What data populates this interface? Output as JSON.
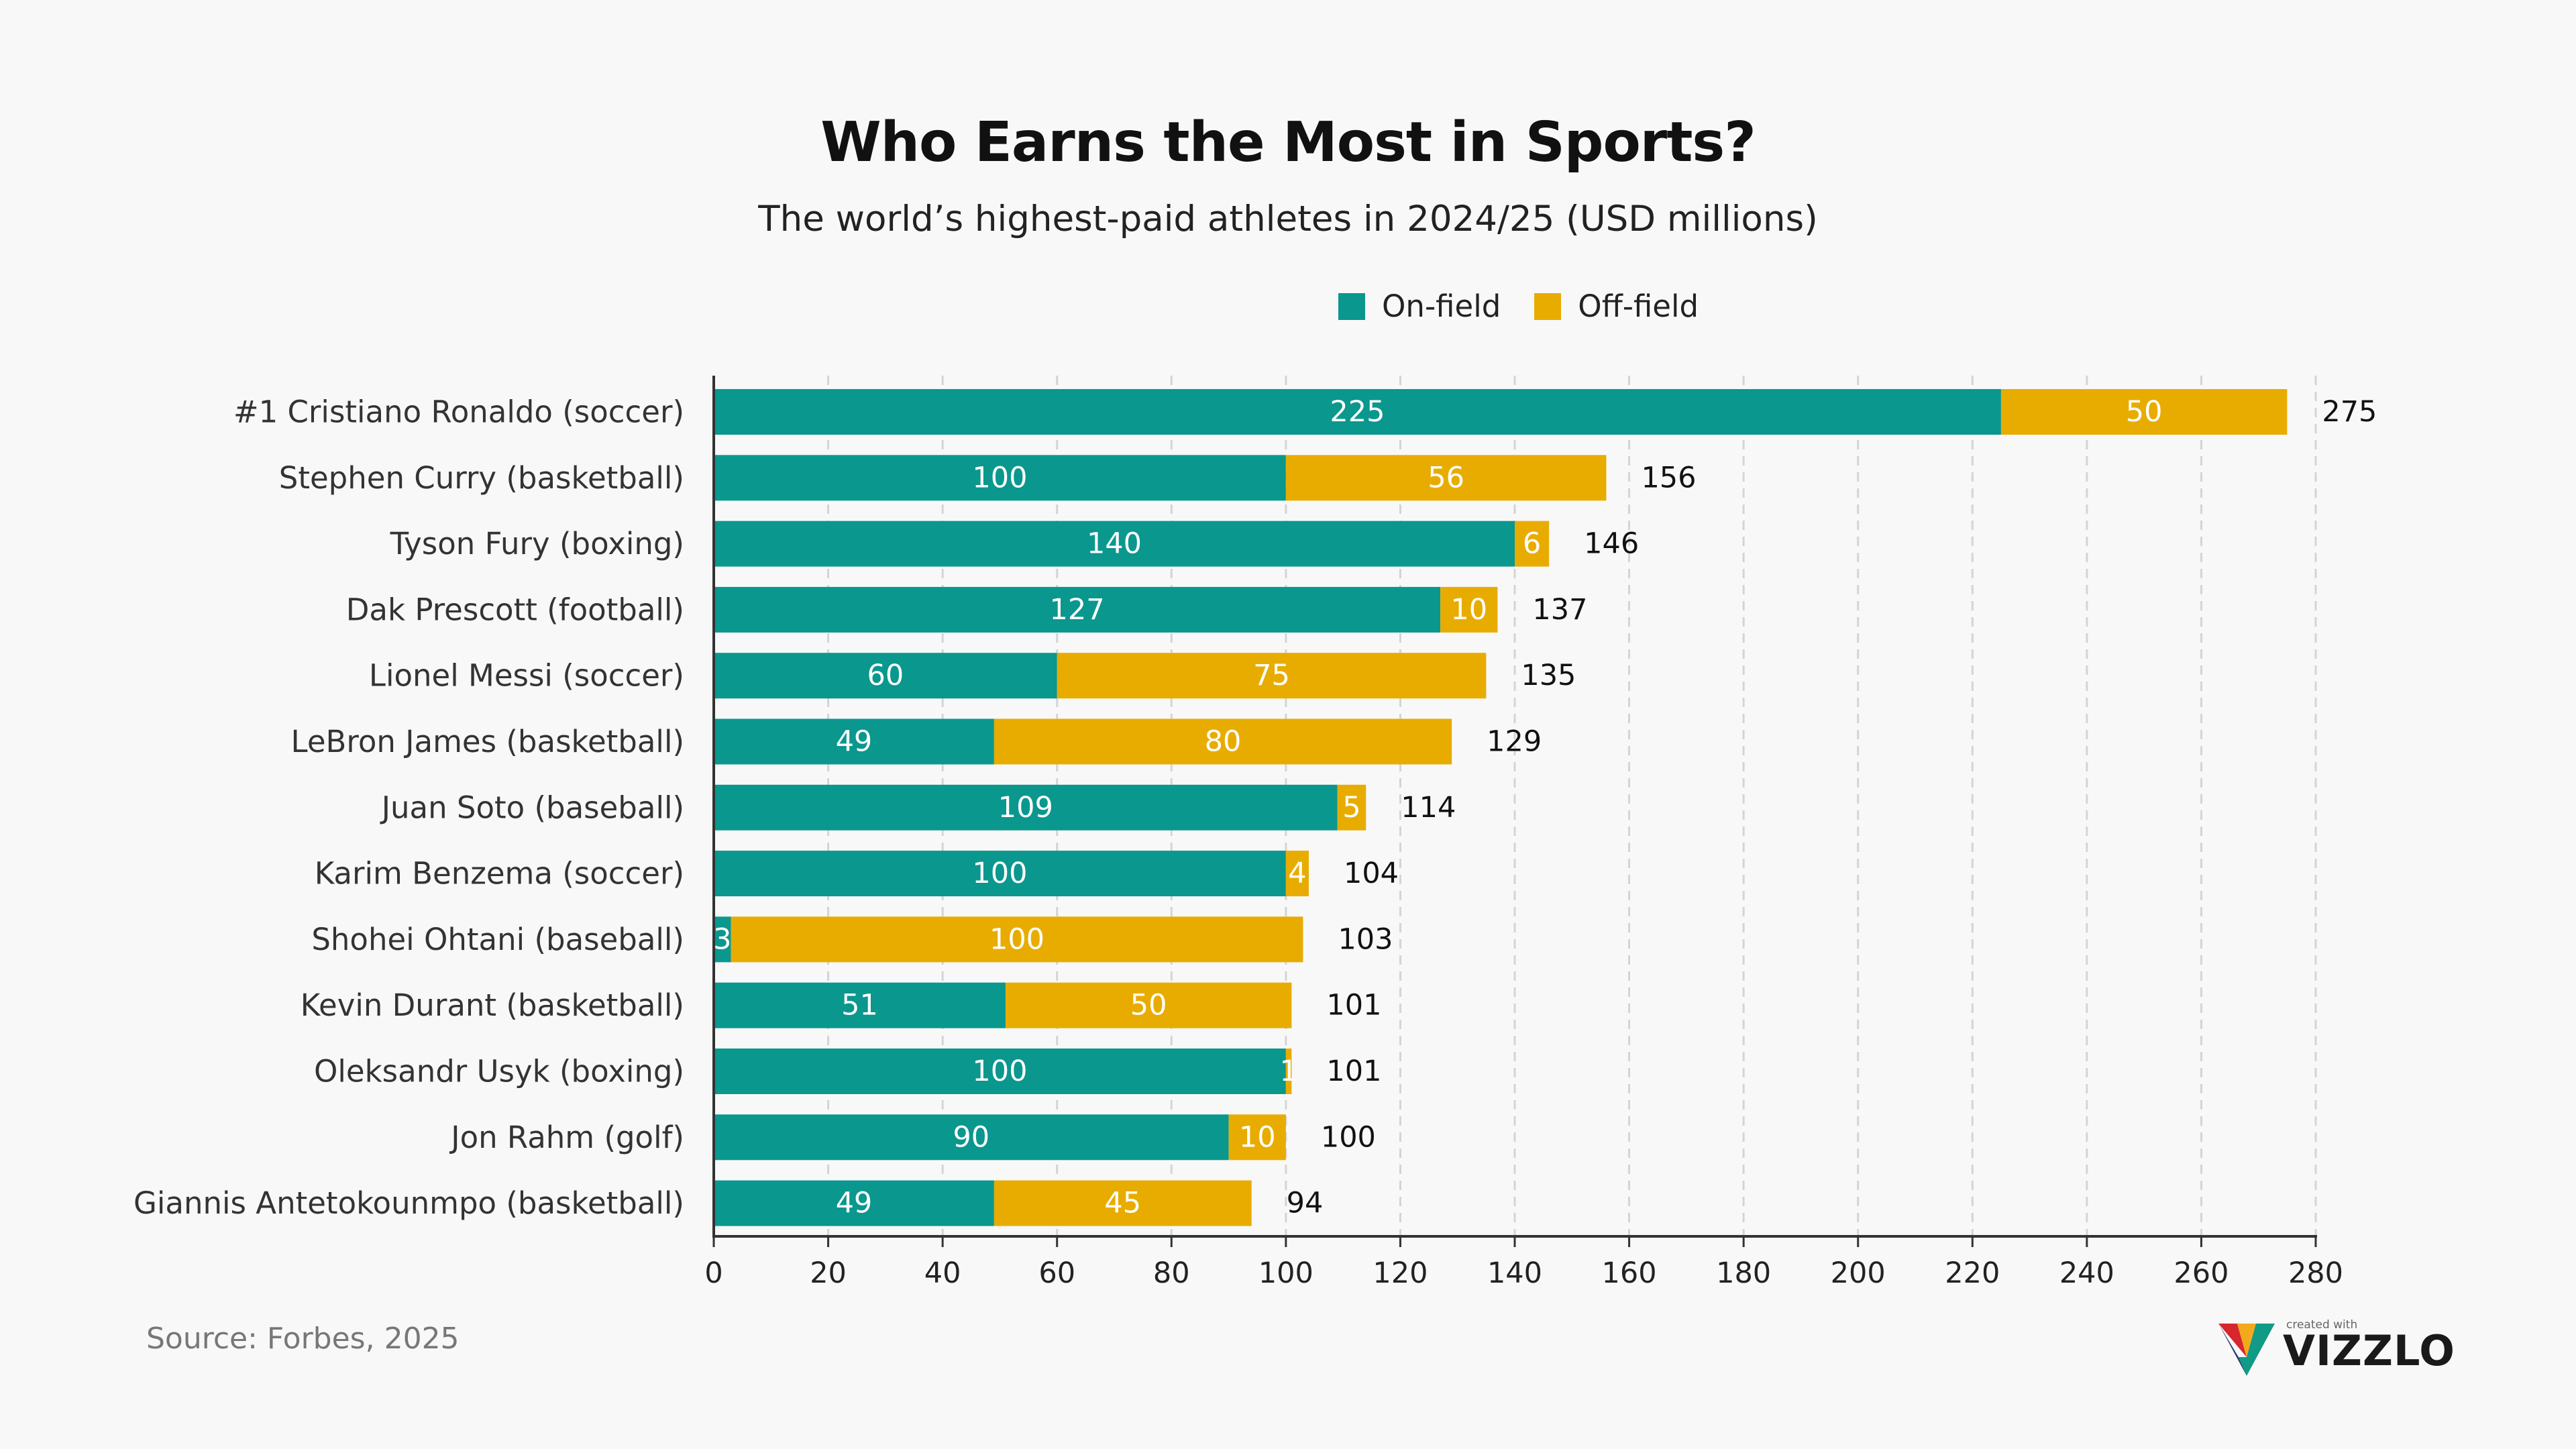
{
  "colors": {
    "on_field": "#0a978e",
    "off_field": "#e8ac00",
    "axis": "#333333",
    "grid": "#d4d4d4",
    "background": "#f8f8f8"
  },
  "header": {
    "title": "Who Earns the Most in Sports?",
    "subtitle": "The world’s highest-paid athletes in 2024/25 (USD millions)"
  },
  "legend": {
    "on_field_label": "On-field",
    "off_field_label": "Off-field"
  },
  "footer": {
    "source": "Source: Forbes, 2025",
    "logo_small": "created with",
    "logo_word": "VIZZLO"
  },
  "chart_data": {
    "type": "bar",
    "orientation": "horizontal",
    "stacked": true,
    "title": "Who Earns the Most in Sports?",
    "subtitle": "The world’s highest-paid athletes in 2024/25 (USD millions)",
    "categories": [
      "#1 Cristiano Ronaldo (soccer)",
      "Stephen Curry (basketball)",
      "Tyson Fury (boxing)",
      "Dak Prescott (football)",
      "Lionel Messi (soccer)",
      "LeBron James (basketball)",
      "Juan Soto (baseball)",
      "Karim Benzema (soccer)",
      "Shohei Ohtani (baseball)",
      "Kevin Durant (basketball)",
      "Oleksandr Usyk (boxing)",
      "Jon Rahm (golf)",
      "Giannis Antetokounmpo (basketball)"
    ],
    "series": [
      {
        "name": "On-field",
        "values": [
          225,
          100,
          140,
          127,
          60,
          49,
          109,
          100,
          3,
          51,
          100,
          90,
          49
        ]
      },
      {
        "name": "Off-field",
        "values": [
          50,
          56,
          6,
          10,
          75,
          80,
          5,
          4,
          100,
          50,
          1,
          10,
          45
        ]
      }
    ],
    "totals": [
      275,
      156,
      146,
      137,
      135,
      129,
      114,
      104,
      103,
      101,
      101,
      100,
      94
    ],
    "xlim": [
      0,
      280
    ],
    "xticks": [
      0,
      20,
      40,
      60,
      80,
      100,
      120,
      140,
      160,
      180,
      200,
      220,
      240,
      260,
      280
    ],
    "grid": true,
    "legend_position": "top-right"
  }
}
